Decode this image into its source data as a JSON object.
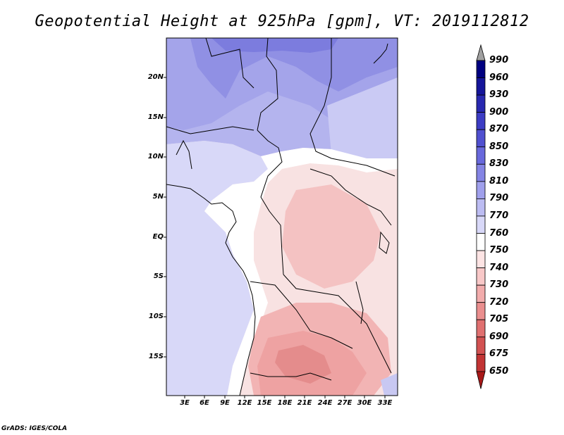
{
  "title": "Geopotential Height at 925hPa [gpm], VT: 2019112812",
  "footer": "GrADS: IGES/COLA",
  "lat_labels": [
    "20N",
    "15N",
    "10N",
    "5N",
    "EQ",
    "5S",
    "10S",
    "15S"
  ],
  "lon_labels": [
    "3E",
    "6E",
    "9E",
    "12E",
    "15E",
    "18E",
    "21E",
    "24E",
    "27E",
    "30E",
    "33E"
  ],
  "colorbar": {
    "labels": [
      "990",
      "960",
      "930",
      "900",
      "870",
      "850",
      "830",
      "810",
      "790",
      "770",
      "760",
      "750",
      "740",
      "730",
      "720",
      "705",
      "690",
      "675",
      "650"
    ],
    "colors": [
      "#000080",
      "#15159a",
      "#2828b0",
      "#3c3cc4",
      "#5050d0",
      "#6868dc",
      "#8484e4",
      "#a0a0ec",
      "#bcbcf2",
      "#d8d8f8",
      "#ffffff",
      "#fde4e4",
      "#f8c8c8",
      "#f2acac",
      "#ea8e8e",
      "#e07070",
      "#d25252",
      "#c23434",
      "#a81818"
    ],
    "top_arrow_color": "#a0a0a0"
  }
}
